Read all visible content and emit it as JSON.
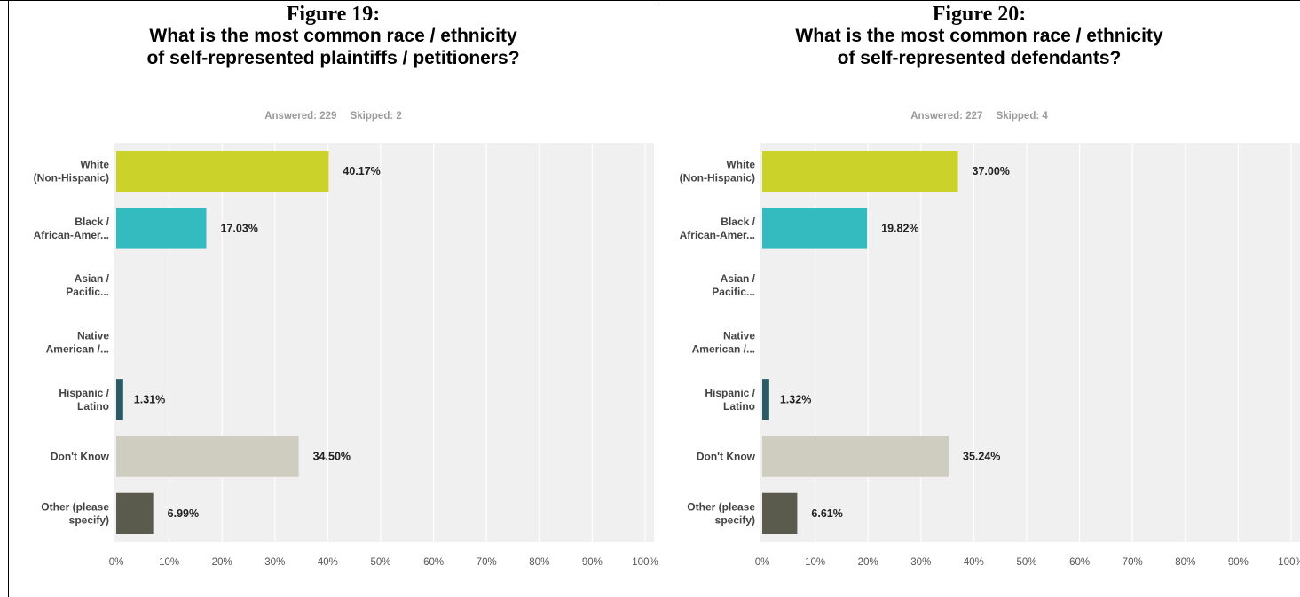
{
  "charts": [
    {
      "figure": "Figure 19:",
      "title": "What is the most common race / ethnicity\nof self-represented plaintiffs / petitioners?",
      "answered": "Answered: 229",
      "skipped": "Skipped: 2"
    },
    {
      "figure": "Figure 20:",
      "title": "What is the most common race / ethnicity\nof self-represented defendants?",
      "answered": "Answered: 227",
      "skipped": "Skipped: 4"
    }
  ],
  "chart_data": [
    {
      "type": "bar",
      "orientation": "horizontal",
      "categories": [
        [
          "White",
          "(Non-Hispanic)"
        ],
        [
          "Black /",
          "African-Amer..."
        ],
        [
          "Asian /",
          "Pacific..."
        ],
        [
          "Native",
          "American /..."
        ],
        [
          "Hispanic /",
          "Latino"
        ],
        [
          "Don't Know"
        ],
        [
          "Other (please",
          "specify)"
        ]
      ],
      "values": [
        40.17,
        17.03,
        0,
        0,
        1.31,
        34.5,
        6.99
      ],
      "value_labels": [
        "40.17%",
        "17.03%",
        "",
        "",
        "1.31%",
        "34.50%",
        "6.99%"
      ],
      "colors": [
        "#cbd22a",
        "#33bbbf",
        "#cbd22a",
        "#cbd22a",
        "#2b5a66",
        "#cfcdbf",
        "#5a5a4d"
      ],
      "xlim": [
        0,
        100
      ],
      "ticks": [
        "0%",
        "10%",
        "20%",
        "30%",
        "40%",
        "50%",
        "60%",
        "70%",
        "80%",
        "90%",
        "100%"
      ],
      "grid": true
    },
    {
      "type": "bar",
      "orientation": "horizontal",
      "categories": [
        [
          "White",
          "(Non-Hispanic)"
        ],
        [
          "Black /",
          "African-Amer..."
        ],
        [
          "Asian /",
          "Pacific..."
        ],
        [
          "Native",
          "American /..."
        ],
        [
          "Hispanic /",
          "Latino"
        ],
        [
          "Don't Know"
        ],
        [
          "Other (please",
          "specify)"
        ]
      ],
      "values": [
        37.0,
        19.82,
        0,
        0,
        1.32,
        35.24,
        6.61
      ],
      "value_labels": [
        "37.00%",
        "19.82%",
        "",
        "",
        "1.32%",
        "35.24%",
        "6.61%"
      ],
      "colors": [
        "#cbd22a",
        "#33bbbf",
        "#cbd22a",
        "#cbd22a",
        "#2b5a66",
        "#cfcdbf",
        "#5a5a4d"
      ],
      "xlim": [
        0,
        100
      ],
      "ticks": [
        "0%",
        "10%",
        "20%",
        "30%",
        "40%",
        "50%",
        "60%",
        "70%",
        "80%",
        "90%",
        "100%"
      ],
      "grid": true
    }
  ]
}
